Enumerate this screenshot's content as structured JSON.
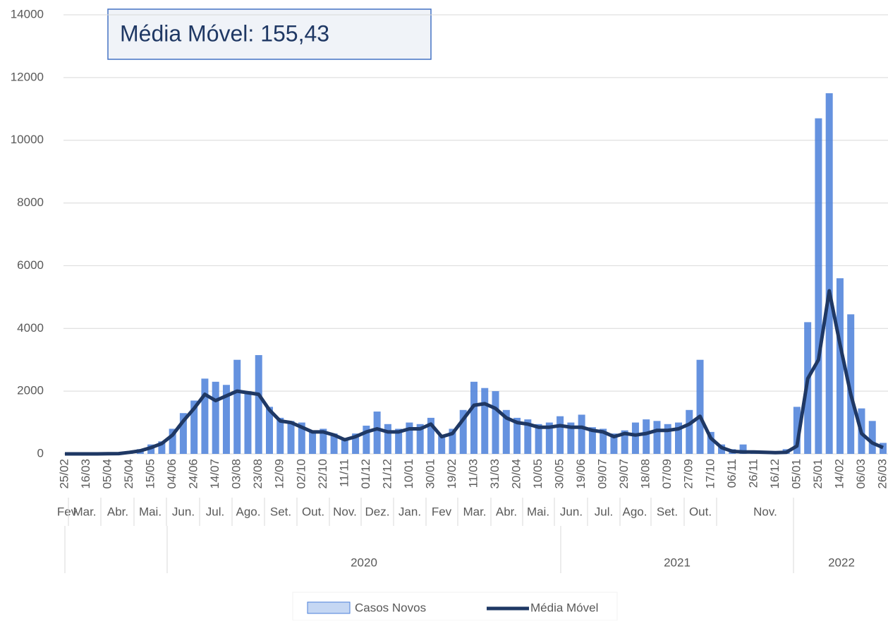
{
  "chart_data": {
    "type": "bar_line",
    "annotation": "Média Móvel: 155,43",
    "categories": [
      "25/02",
      null,
      "16/03",
      null,
      "05/04",
      null,
      "25/04",
      null,
      "15/05",
      null,
      "04/06",
      null,
      "24/06",
      null,
      "14/07",
      null,
      "03/08",
      null,
      "23/08",
      null,
      "12/09",
      null,
      "02/10",
      null,
      "22/10",
      null,
      "11/11",
      null,
      "01/12",
      null,
      "21/12",
      null,
      "10/01",
      null,
      "30/01",
      null,
      "19/02",
      null,
      "11/03",
      null,
      "31/03",
      null,
      "20/04",
      null,
      "10/05",
      null,
      "30/05",
      null,
      "19/06",
      null,
      "09/07",
      null,
      "29/07",
      null,
      "18/08",
      null,
      "07/09",
      null,
      "27/09",
      null,
      "17/10",
      null,
      "06/11",
      null,
      "26/11",
      null,
      "16/12",
      null,
      "05/01",
      null,
      "25/01",
      null,
      "14/02",
      null,
      "06/03",
      null,
      "26/03"
    ],
    "month_labels": [
      "Fev",
      "Mar.",
      "Abr.",
      "Mai.",
      "Jun.",
      "Jul.",
      "Ago.",
      "Set.",
      "Out.",
      "Nov.",
      "Dez.",
      "Jan.",
      "Fev",
      "Mar.",
      "Abr.",
      "Mai.",
      "Jun.",
      "Jul.",
      "Ago.",
      "Set.",
      "Out.",
      "Nov."
    ],
    "year_labels": [
      "2020",
      "2021",
      "2022"
    ],
    "series": [
      {
        "name": "Casos Novos",
        "color": "#4a7fd9",
        "values": [
          0,
          0,
          0,
          0,
          10,
          20,
          70,
          150,
          300,
          400,
          800,
          1300,
          1700,
          2400,
          2300,
          2200,
          3000,
          2000,
          3150,
          1500,
          1150,
          1050,
          1000,
          750,
          800,
          650,
          500,
          650,
          900,
          1350,
          950,
          800,
          1000,
          950,
          1150,
          600,
          800,
          1400,
          2300,
          2100,
          2000,
          1400,
          1150,
          1100,
          950,
          1000,
          1200,
          1000,
          1250,
          850,
          800,
          650,
          750,
          1000,
          1100,
          1050,
          950,
          1000,
          1400,
          3000,
          700,
          300,
          150,
          300,
          100,
          80,
          60,
          150,
          1500,
          4200,
          10700,
          11500,
          5600,
          4450,
          1450,
          1050,
          350
        ]
      },
      {
        "name": "Média Móvel",
        "color": "#1f3864",
        "values": [
          0,
          0,
          0,
          0,
          5,
          10,
          50,
          100,
          200,
          330,
          600,
          1050,
          1450,
          1900,
          1700,
          1850,
          2000,
          1950,
          1900,
          1400,
          1050,
          1000,
          850,
          700,
          700,
          600,
          450,
          550,
          700,
          800,
          700,
          700,
          800,
          800,
          950,
          550,
          650,
          1100,
          1550,
          1600,
          1450,
          1150,
          1000,
          950,
          850,
          850,
          900,
          850,
          850,
          750,
          700,
          550,
          650,
          600,
          650,
          750,
          750,
          800,
          950,
          1200,
          500,
          200,
          80,
          60,
          60,
          50,
          40,
          50,
          250,
          2400,
          3000,
          5200,
          3500,
          1900,
          650,
          350,
          200
        ]
      }
    ],
    "ylim": [
      0,
      14000
    ],
    "yticks": [
      0,
      2000,
      4000,
      6000,
      8000,
      10000,
      12000,
      14000
    ],
    "grid": true
  }
}
